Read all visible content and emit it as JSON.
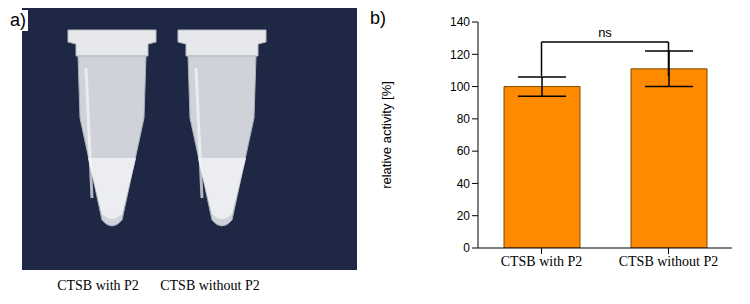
{
  "photo": {
    "label": "a)",
    "captions": [
      "CTSB with P2",
      "CTSB without P2"
    ]
  },
  "chart_data": {
    "label": "b)",
    "type": "bar",
    "categories": [
      "CTSB with P2",
      "CTSB without P2"
    ],
    "values": [
      100,
      111
    ],
    "errors": [
      6,
      11
    ],
    "color": "#ff8a00",
    "ylabel": "relative activity [%]",
    "ylim": [
      0,
      140
    ],
    "yticks": [
      0,
      20,
      40,
      60,
      80,
      100,
      120,
      140
    ],
    "annotations": [
      "ns"
    ]
  }
}
